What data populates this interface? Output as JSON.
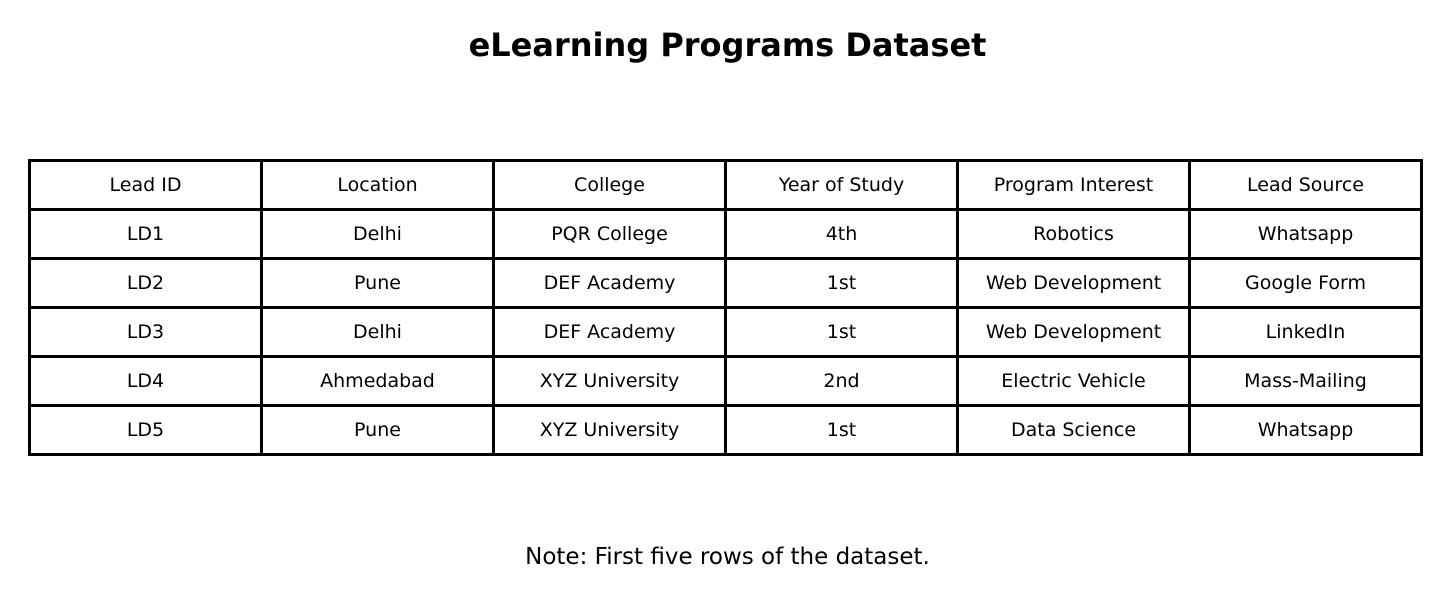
{
  "chart_data": {
    "type": "table",
    "title": "eLearning Programs Dataset",
    "columns": [
      "Lead ID",
      "Location",
      "College",
      "Year of Study",
      "Program Interest",
      "Lead Source"
    ],
    "rows": [
      [
        "LD1",
        "Delhi",
        "PQR College",
        "4th",
        "Robotics",
        "Whatsapp"
      ],
      [
        "LD2",
        "Pune",
        "DEF Academy",
        "1st",
        "Web Development",
        "Google Form"
      ],
      [
        "LD3",
        "Delhi",
        "DEF Academy",
        "1st",
        "Web Development",
        "LinkedIn"
      ],
      [
        "LD4",
        "Ahmedabad",
        "XYZ University",
        "2nd",
        "Electric Vehicle",
        "Mass-Mailing"
      ],
      [
        "LD5",
        "Pune",
        "XYZ University",
        "1st",
        "Data Science",
        "Whatsapp"
      ]
    ],
    "note": "Note: First five rows of the dataset."
  }
}
